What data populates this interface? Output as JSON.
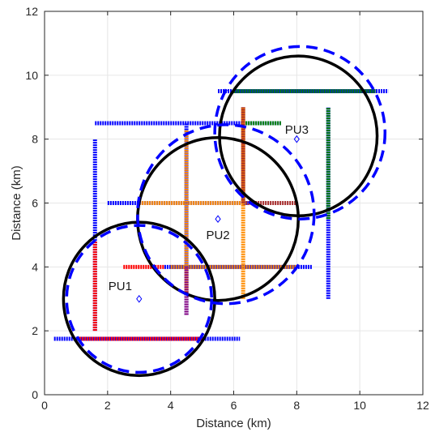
{
  "chart_data": {
    "type": "scatter",
    "title": "",
    "xlabel": "Distance (km)",
    "ylabel": "Distance (km)",
    "xlim": [
      0,
      12
    ],
    "ylim": [
      0,
      12
    ],
    "xticks": [
      "0",
      "2",
      "4",
      "6",
      "8",
      "10",
      "12"
    ],
    "yticks": [
      "0",
      "2",
      "4",
      "6",
      "8",
      "10",
      "12"
    ],
    "grid": true,
    "legend": "none",
    "primary_users": [
      {
        "label": "PU1",
        "x": 3.0,
        "y": 3.0,
        "label_x": 2.4,
        "label_y": 3.4
      },
      {
        "label": "PU2",
        "x": 5.5,
        "y": 5.5,
        "label_x": 5.5,
        "label_y": 5.0
      },
      {
        "label": "PU3",
        "x": 8.0,
        "y": 8.0,
        "label_x": 8.0,
        "label_y": 8.3
      }
    ],
    "solid_circles": [
      {
        "cx": 3.0,
        "cy": 3.0,
        "r": 2.4,
        "color": "#000000"
      },
      {
        "cx": 5.5,
        "cy": 5.5,
        "r": 2.55,
        "color": "#000000"
      },
      {
        "cx": 8.05,
        "cy": 8.1,
        "r": 2.5,
        "color": "#000000"
      }
    ],
    "dashed_circles": [
      {
        "cx": 3.0,
        "cy": 3.0,
        "r": 2.3,
        "color": "#0000ff"
      },
      {
        "cx": 5.75,
        "cy": 5.65,
        "r": 2.8,
        "color": "#0000ff"
      },
      {
        "cx": 8.1,
        "cy": 8.2,
        "r": 2.7,
        "color": "#0000ff"
      }
    ],
    "segments": [
      {
        "color": "#0000ff",
        "x1": 0.3,
        "y1": 1.75,
        "x2": 6.2,
        "y2": 1.75
      },
      {
        "color": "#ff0000",
        "x1": 1.1,
        "y1": 1.75,
        "x2": 5.0,
        "y2": 1.75
      },
      {
        "color": "#0000ff",
        "x1": 1.6,
        "y1": 2.0,
        "x2": 1.6,
        "y2": 8.0
      },
      {
        "color": "#ff0000",
        "x1": 1.6,
        "y1": 2.0,
        "x2": 1.6,
        "y2": 4.8
      },
      {
        "color": "#0000ff",
        "x1": 1.6,
        "y1": 8.5,
        "x2": 7.5,
        "y2": 8.5
      },
      {
        "color": "#008000",
        "x1": 6.3,
        "y1": 8.5,
        "x2": 7.5,
        "y2": 8.5
      },
      {
        "color": "#0000ff",
        "x1": 2.0,
        "y1": 6.0,
        "x2": 6.5,
        "y2": 6.0
      },
      {
        "color": "#ff8c00",
        "x1": 3.0,
        "y1": 6.0,
        "x2": 6.3,
        "y2": 6.0
      },
      {
        "color": "#a52a2a",
        "x1": 6.3,
        "y1": 6.0,
        "x2": 8.0,
        "y2": 6.0
      },
      {
        "color": "#ff0000",
        "x1": 2.5,
        "y1": 4.0,
        "x2": 3.8,
        "y2": 4.0
      },
      {
        "color": "#0000ff",
        "x1": 3.8,
        "y1": 4.0,
        "x2": 8.5,
        "y2": 4.0
      },
      {
        "color": "#ff8c00",
        "x1": 4.0,
        "y1": 4.0,
        "x2": 8.0,
        "y2": 4.0
      },
      {
        "color": "#0000ff",
        "x1": 4.5,
        "y1": 2.5,
        "x2": 4.5,
        "y2": 8.5
      },
      {
        "color": "#ff8c00",
        "x1": 4.5,
        "y1": 3.2,
        "x2": 4.5,
        "y2": 8.3
      },
      {
        "color": "#800080",
        "x1": 4.5,
        "y1": 2.5,
        "x2": 4.5,
        "y2": 4.0
      },
      {
        "color": "#ff8c00",
        "x1": 6.3,
        "y1": 3.0,
        "x2": 6.3,
        "y2": 9.0
      },
      {
        "color": "#a52a2a",
        "x1": 6.3,
        "y1": 6.0,
        "x2": 6.3,
        "y2": 9.0
      },
      {
        "color": "#0000ff",
        "x1": 5.5,
        "y1": 9.5,
        "x2": 10.9,
        "y2": 9.5
      },
      {
        "color": "#008000",
        "x1": 6.0,
        "y1": 9.5,
        "x2": 10.5,
        "y2": 9.5
      },
      {
        "color": "#0000ff",
        "x1": 9.0,
        "y1": 3.0,
        "x2": 9.0,
        "y2": 9.0
      },
      {
        "color": "#008000",
        "x1": 9.0,
        "y1": 5.5,
        "x2": 9.0,
        "y2": 9.0
      }
    ]
  }
}
